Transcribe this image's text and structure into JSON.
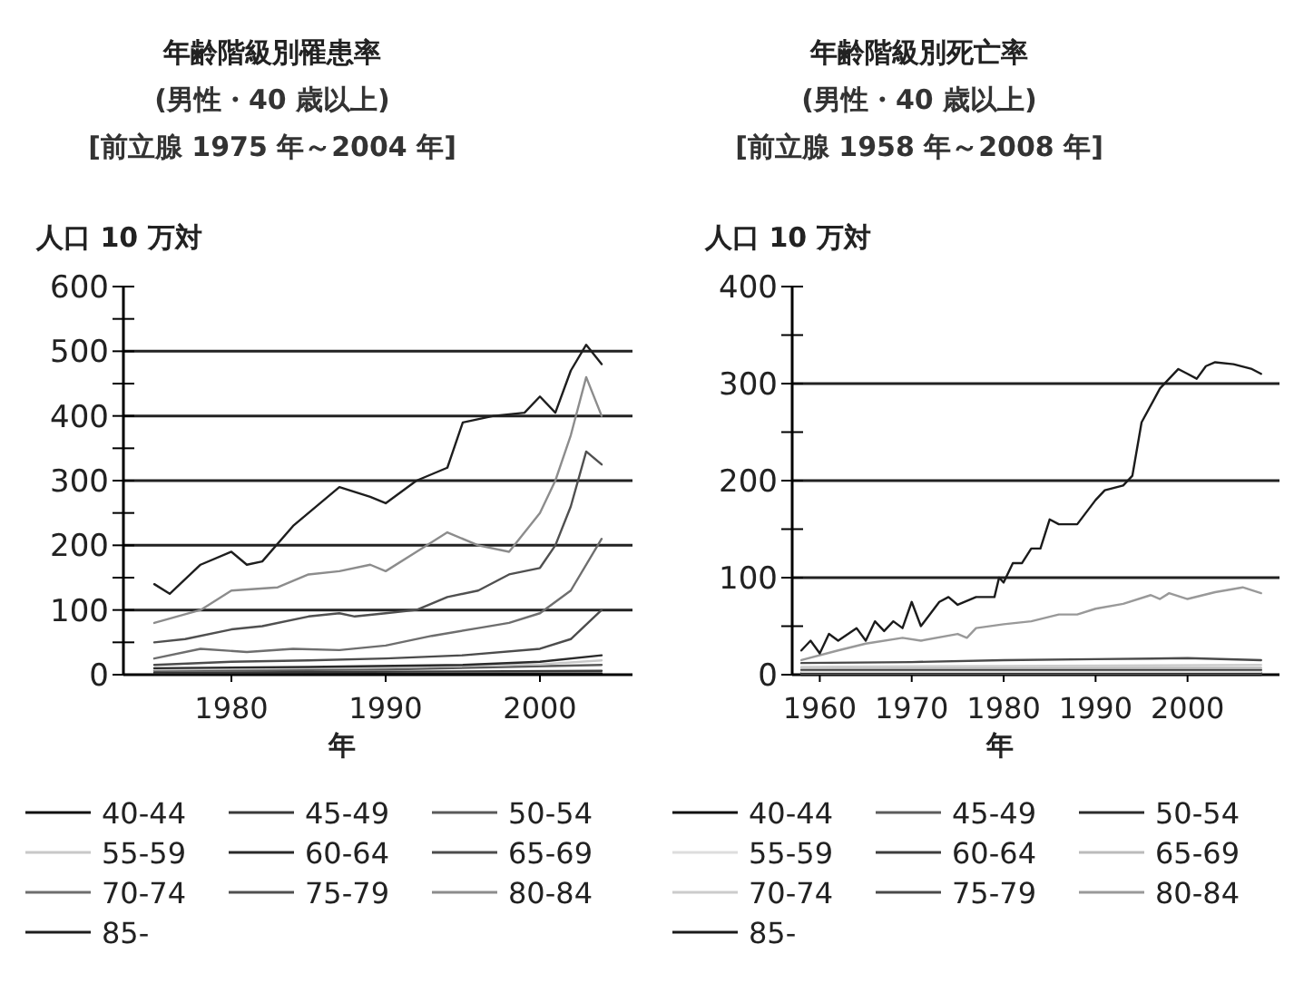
{
  "chart_data": [
    {
      "type": "line",
      "title": "年齢階級別罹患率",
      "subtitle": "(男性・40 歳以上)",
      "annotations": [
        "[前立腺 1975 年～2004 年]"
      ],
      "ylabel": "人口 10 万対",
      "xlabel": "年",
      "xlim": [
        1973,
        2006
      ],
      "xticks": [
        1980,
        1990,
        2000
      ],
      "ylim": [
        0,
        600
      ],
      "yticks": [
        0,
        {
          "value": 50,
          "label": null
        },
        100,
        {
          "value": 150,
          "label": null
        },
        200,
        {
          "value": 250,
          "label": null
        },
        300,
        {
          "value": 350,
          "label": null
        },
        400,
        {
          "value": 450,
          "label": null
        },
        500,
        {
          "value": 550,
          "label": null
        },
        600
      ],
      "grid": "y",
      "legend": "bottom",
      "series": [
        {
          "name": "40-44",
          "color": "#111111",
          "x": [
            1975,
            2004
          ],
          "values": [
            1,
            2
          ]
        },
        {
          "name": "45-49",
          "color": "#3a3a3a",
          "x": [
            1975,
            2004
          ],
          "values": [
            3,
            6
          ]
        },
        {
          "name": "50-54",
          "color": "#5a5a5a",
          "x": [
            1975,
            1990,
            2004
          ],
          "values": [
            6,
            8,
            15
          ]
        },
        {
          "name": "55-59",
          "color": "#c8c8c8",
          "x": [
            1975,
            1990,
            2000,
            2004
          ],
          "values": [
            8,
            11,
            16,
            22
          ]
        },
        {
          "name": "60-64",
          "color": "#2a2a2a",
          "x": [
            1975,
            1985,
            1995,
            2000,
            2004
          ],
          "values": [
            10,
            12,
            15,
            20,
            30
          ]
        },
        {
          "name": "65-69",
          "color": "#4c4c4c",
          "x": [
            1975,
            1980,
            1985,
            1990,
            1995,
            2000,
            2002,
            2004
          ],
          "values": [
            15,
            20,
            22,
            25,
            30,
            40,
            55,
            100
          ]
        },
        {
          "name": "70-74",
          "color": "#6e6e6e",
          "x": [
            1975,
            1978,
            1981,
            1984,
            1987,
            1990,
            1993,
            1996,
            1998,
            2000,
            2002,
            2004
          ],
          "values": [
            25,
            40,
            35,
            40,
            38,
            45,
            60,
            72,
            80,
            95,
            130,
            210
          ]
        },
        {
          "name": "75-79",
          "color": "#505050",
          "x": [
            1975,
            1977,
            1980,
            1982,
            1985,
            1987,
            1988,
            1990,
            1992,
            1994,
            1996,
            1998,
            2000,
            2001,
            2002,
            2003,
            2004
          ],
          "values": [
            50,
            55,
            70,
            75,
            90,
            95,
            90,
            95,
            100,
            120,
            130,
            155,
            165,
            200,
            260,
            345,
            325
          ]
        },
        {
          "name": "80-84",
          "color": "#8c8c8c",
          "x": [
            1975,
            1978,
            1980,
            1983,
            1985,
            1987,
            1989,
            1990,
            1992,
            1994,
            1996,
            1998,
            2000,
            2001,
            2002,
            2003,
            2004
          ],
          "values": [
            80,
            100,
            130,
            135,
            155,
            160,
            170,
            160,
            190,
            220,
            200,
            190,
            250,
            300,
            370,
            460,
            400
          ]
        },
        {
          "name": "85-",
          "color": "#1e1e1e",
          "x": [
            1975,
            1976,
            1978,
            1980,
            1981,
            1982,
            1984,
            1987,
            1989,
            1990,
            1992,
            1994,
            1995,
            1997,
            1999,
            2000,
            2001,
            2002,
            2003,
            2004
          ],
          "values": [
            140,
            125,
            170,
            190,
            170,
            175,
            230,
            290,
            275,
            265,
            300,
            320,
            390,
            400,
            405,
            430,
            405,
            470,
            510,
            480
          ]
        }
      ]
    },
    {
      "type": "line",
      "title": "年齢階級別死亡率",
      "subtitle": "(男性・40 歳以上)",
      "annotations": [
        "[前立腺 1958 年～2008 年]"
      ],
      "ylabel": "人口 10 万対",
      "xlabel": "年",
      "xlim": [
        1957,
        2010
      ],
      "xticks": [
        1960,
        1970,
        1980,
        1990,
        2000
      ],
      "ylim": [
        0,
        400
      ],
      "yticks": [
        0,
        {
          "value": 50,
          "label": null
        },
        100,
        {
          "value": 150,
          "label": null
        },
        200,
        {
          "value": 250,
          "label": null
        },
        300,
        {
          "value": 350,
          "label": null
        },
        400
      ],
      "grid": "y",
      "legend": "bottom",
      "series": [
        {
          "name": "40-44",
          "color": "#111111",
          "x": [
            1958,
            2008
          ],
          "values": [
            0,
            0
          ]
        },
        {
          "name": "45-49",
          "color": "#5c5c5c",
          "x": [
            1958,
            2008
          ],
          "values": [
            1,
            1
          ]
        },
        {
          "name": "50-54",
          "color": "#2c2c2c",
          "x": [
            1958,
            2008
          ],
          "values": [
            2,
            2
          ]
        },
        {
          "name": "55-59",
          "color": "#dddddd",
          "x": [
            1958,
            2008
          ],
          "values": [
            3,
            3
          ]
        },
        {
          "name": "60-64",
          "color": "#3d3d3d",
          "x": [
            1958,
            2008
          ],
          "values": [
            5,
            5
          ]
        },
        {
          "name": "65-69",
          "color": "#bbbbbb",
          "x": [
            1958,
            2008
          ],
          "values": [
            7,
            7
          ]
        },
        {
          "name": "70-74",
          "color": "#cccccc",
          "x": [
            1958,
            1980,
            2008
          ],
          "values": [
            8,
            9,
            10
          ]
        },
        {
          "name": "75-79",
          "color": "#4a4a4a",
          "x": [
            1958,
            1970,
            1980,
            1990,
            2000,
            2008
          ],
          "values": [
            12,
            13,
            15,
            16,
            17,
            15
          ]
        },
        {
          "name": "80-84",
          "color": "#999999",
          "x": [
            1958,
            1962,
            1965,
            1969,
            1971,
            1975,
            1976,
            1977,
            1980,
            1983,
            1986,
            1988,
            1990,
            1993,
            1996,
            1997,
            1998,
            2000,
            2003,
            2006,
            2008
          ],
          "values": [
            15,
            25,
            32,
            38,
            35,
            42,
            38,
            48,
            52,
            55,
            62,
            62,
            68,
            73,
            82,
            78,
            84,
            78,
            85,
            90,
            84
          ]
        },
        {
          "name": "85-",
          "color": "#1b1b1b",
          "x": [
            1958,
            1959,
            1960,
            1961,
            1962,
            1964,
            1965,
            1966,
            1967,
            1968,
            1969,
            1970,
            1971,
            1973,
            1974,
            1975,
            1977,
            1979,
            1979.5,
            1980,
            1981,
            1982,
            1983,
            1984,
            1985,
            1986,
            1988,
            1990,
            1991,
            1993,
            1994,
            1995,
            1997,
            1999,
            2000,
            2001,
            2002,
            2003,
            2005,
            2007,
            2008
          ],
          "values": [
            25,
            35,
            22,
            42,
            35,
            48,
            35,
            55,
            45,
            55,
            48,
            75,
            50,
            75,
            80,
            72,
            80,
            80,
            100,
            95,
            115,
            115,
            130,
            130,
            160,
            155,
            155,
            180,
            190,
            195,
            205,
            260,
            295,
            315,
            310,
            305,
            318,
            322,
            320,
            315,
            310
          ]
        }
      ]
    }
  ]
}
